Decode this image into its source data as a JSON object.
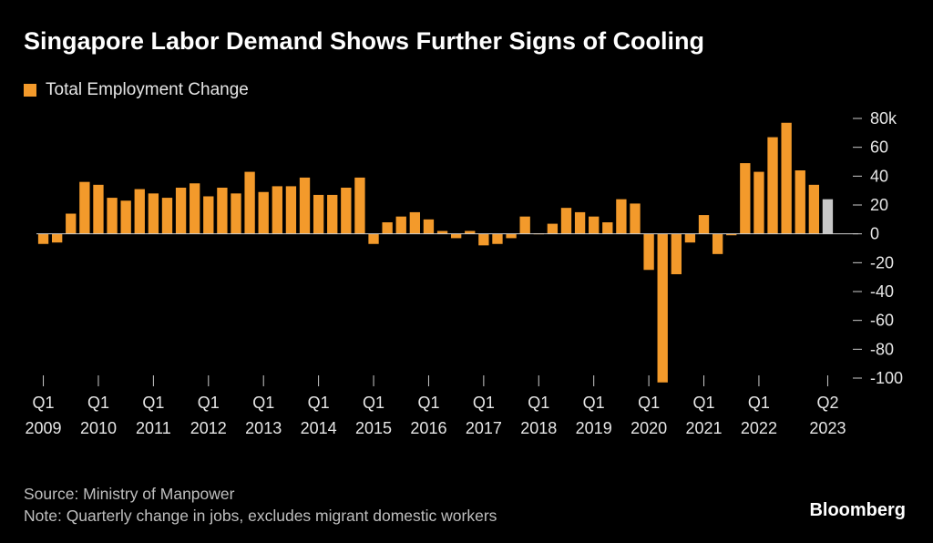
{
  "title": "Singapore Labor Demand Shows Further Signs of Cooling",
  "legend_label": "Total Employment Change",
  "source": "Source: Ministry of Manpower",
  "note": "Note: Quarterly change in jobs, excludes migrant domestic workers",
  "brand": "Bloomberg",
  "colors": {
    "bar": "#f39a2b",
    "highlight": "#c8c8c8",
    "background": "#000000",
    "zero_line": "#cccccc"
  },
  "chart_data": {
    "type": "bar",
    "title": "Singapore Labor Demand Shows Further Signs of Cooling",
    "series_name": "Total Employment Change",
    "ylim": [
      -100,
      80
    ],
    "yticks": [
      80,
      60,
      40,
      20,
      0,
      -20,
      -40,
      -60,
      -80,
      -100
    ],
    "ytick_labels": [
      "80k",
      "60",
      "40",
      "20",
      "0",
      "-20",
      "-40",
      "-60",
      "-80",
      "-100"
    ],
    "categories": [
      "Q1 2009",
      "Q2 2009",
      "Q3 2009",
      "Q4 2009",
      "Q1 2010",
      "Q2 2010",
      "Q3 2010",
      "Q4 2010",
      "Q1 2011",
      "Q2 2011",
      "Q3 2011",
      "Q4 2011",
      "Q1 2012",
      "Q2 2012",
      "Q3 2012",
      "Q4 2012",
      "Q1 2013",
      "Q2 2013",
      "Q3 2013",
      "Q4 2013",
      "Q1 2014",
      "Q2 2014",
      "Q3 2014",
      "Q4 2014",
      "Q1 2015",
      "Q2 2015",
      "Q3 2015",
      "Q4 2015",
      "Q1 2016",
      "Q2 2016",
      "Q3 2016",
      "Q4 2016",
      "Q1 2017",
      "Q2 2017",
      "Q3 2017",
      "Q4 2017",
      "Q1 2018",
      "Q2 2018",
      "Q3 2018",
      "Q4 2018",
      "Q1 2019",
      "Q2 2019",
      "Q3 2019",
      "Q4 2019",
      "Q1 2020",
      "Q2 2020",
      "Q3 2020",
      "Q4 2020",
      "Q1 2021",
      "Q2 2021",
      "Q3 2021",
      "Q4 2021",
      "Q1 2022",
      "Q2 2022",
      "Q3 2022",
      "Q4 2022",
      "Q1 2023",
      "Q2 2023"
    ],
    "values": [
      -7,
      -6,
      14,
      36,
      34,
      25,
      23,
      31,
      28,
      25,
      32,
      35,
      26,
      32,
      28,
      43,
      29,
      33,
      33,
      39,
      27,
      27,
      32,
      39,
      -7,
      8,
      12,
      15,
      10,
      2,
      -3,
      2,
      -8,
      -7,
      -3,
      12,
      0,
      7,
      18,
      15,
      12,
      8,
      24,
      21,
      -25,
      -103,
      -28,
      -6,
      13,
      -14,
      -1,
      49,
      43,
      67,
      77,
      44,
      34,
      24
    ],
    "highlight_index": 57,
    "x_tick_labels": [
      {
        "q": "Q1",
        "year": "2009",
        "index": 0
      },
      {
        "q": "Q1",
        "year": "2010",
        "index": 4
      },
      {
        "q": "Q1",
        "year": "2011",
        "index": 8
      },
      {
        "q": "Q1",
        "year": "2012",
        "index": 12
      },
      {
        "q": "Q1",
        "year": "2013",
        "index": 16
      },
      {
        "q": "Q1",
        "year": "2014",
        "index": 20
      },
      {
        "q": "Q1",
        "year": "2015",
        "index": 24
      },
      {
        "q": "Q1",
        "year": "2016",
        "index": 28
      },
      {
        "q": "Q1",
        "year": "2017",
        "index": 32
      },
      {
        "q": "Q1",
        "year": "2018",
        "index": 36
      },
      {
        "q": "Q1",
        "year": "2019",
        "index": 40
      },
      {
        "q": "Q1",
        "year": "2020",
        "index": 44
      },
      {
        "q": "Q1",
        "year": "2021",
        "index": 48
      },
      {
        "q": "Q1",
        "year": "2022",
        "index": 52
      },
      {
        "q": "Q2",
        "year": "2023",
        "index": 57
      }
    ],
    "legend_position": "top-left"
  }
}
